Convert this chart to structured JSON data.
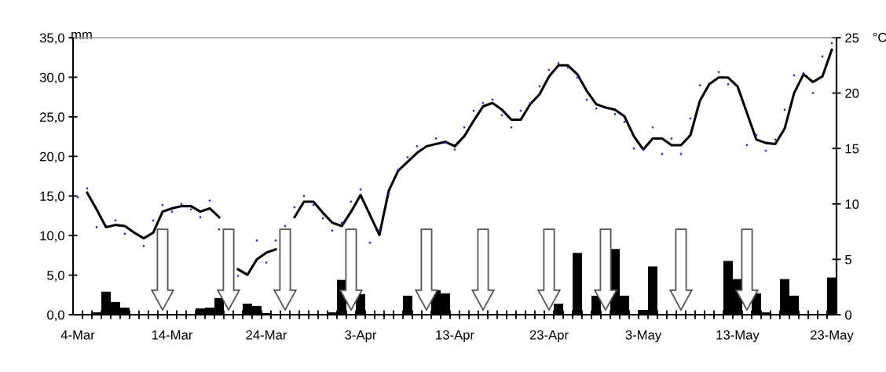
{
  "chart_data": {
    "type": "bar",
    "categories": [
      "4-Mar",
      null,
      null,
      null,
      null,
      null,
      null,
      null,
      null,
      null,
      "14-Mar",
      null,
      null,
      null,
      null,
      null,
      null,
      null,
      null,
      null,
      "24-Mar",
      null,
      null,
      null,
      null,
      null,
      null,
      null,
      null,
      null,
      "3-Apr",
      null,
      null,
      null,
      null,
      null,
      null,
      null,
      null,
      null,
      "13-Apr",
      null,
      null,
      null,
      null,
      null,
      null,
      null,
      null,
      null,
      "23-Apr",
      null,
      null,
      null,
      null,
      null,
      null,
      null,
      null,
      null,
      "3-May",
      null,
      null,
      null,
      null,
      null,
      null,
      null,
      null,
      null,
      "13-May",
      null,
      null,
      null,
      null,
      null,
      null,
      null,
      null,
      null,
      "23-May"
    ],
    "series": [
      {
        "axis": "y",
        "color": "#000000",
        "values": [
          null,
          null,
          0.3,
          2.9,
          1.6,
          0.9,
          null,
          null,
          null,
          null,
          null,
          null,
          null,
          0.8,
          0.9,
          2.1,
          null,
          null,
          1.4,
          1.1,
          0.2,
          null,
          null,
          null,
          null,
          null,
          null,
          0.3,
          4.4,
          null,
          2.6,
          null,
          null,
          null,
          null,
          2.4,
          null,
          null,
          3.1,
          2.7,
          null,
          null,
          null,
          null,
          null,
          null,
          null,
          null,
          null,
          null,
          null,
          1.4,
          null,
          7.8,
          null,
          2.4,
          null,
          8.3,
          2.4,
          null,
          0.6,
          6.1,
          null,
          null,
          null,
          null,
          null,
          null,
          null,
          6.8,
          4.5,
          null,
          2.7,
          0.3,
          null,
          4.5,
          2.4,
          null,
          null,
          null,
          4.7
        ]
      },
      {
        "type": "line",
        "axis": "y2",
        "color": "#000000",
        "marker": "none",
        "line_style": "solid",
        "values": [
          null,
          11.0,
          9.5,
          7.9,
          8.1,
          8.0,
          7.4,
          6.9,
          7.4,
          9.3,
          9.6,
          9.8,
          9.8,
          9.3,
          9.6,
          8.8,
          null,
          4.1,
          3.6,
          5.0,
          5.6,
          5.9,
          null,
          8.8,
          10.2,
          10.2,
          9.2,
          8.3,
          8.0,
          9.3,
          10.8,
          9.0,
          7.2,
          11.2,
          13.0,
          13.8,
          14.6,
          15.2,
          15.4,
          15.6,
          15.2,
          16.1,
          17.5,
          18.8,
          19.1,
          18.5,
          17.6,
          17.6,
          19.0,
          19.9,
          21.5,
          22.5,
          22.5,
          21.7,
          20.2,
          19.0,
          18.7,
          18.5,
          17.9,
          16.1,
          14.9,
          15.9,
          15.9,
          15.3,
          15.3,
          16.2,
          19.3,
          20.8,
          21.4,
          21.4,
          20.6,
          18.2,
          15.8,
          15.5,
          15.4,
          16.8,
          20.0,
          21.7,
          21.0,
          21.5,
          23.9
        ]
      },
      {
        "type": "scatter",
        "axis": "y2",
        "color": "#3333cc",
        "marker": "circle",
        "values": [
          10.6,
          11.4,
          7.9,
          null,
          8.5,
          7.3,
          null,
          6.2,
          8.5,
          9.9,
          9.3,
          10.0,
          9.5,
          8.8,
          10.3,
          7.7,
          null,
          3.5,
          null,
          6.7,
          4.7,
          6.7,
          8.0,
          9.7,
          10.7,
          9.9,
          8.7,
          7.6,
          8.3,
          10.2,
          11.3,
          6.5,
          7.6,
          10.9,
          13.1,
          14.2,
          15.2,
          null,
          15.9,
          15.5,
          14.9,
          16.9,
          18.4,
          19.1,
          19.4,
          18.0,
          16.9,
          18.4,
          19.1,
          20.6,
          22.1,
          22.7,
          22.3,
          21.4,
          19.4,
          18.6,
          null,
          18.1,
          17.4,
          15.0,
          14.9,
          16.9,
          14.5,
          15.9,
          14.5,
          17.7,
          20.7,
          null,
          21.9,
          20.8,
          null,
          15.3,
          16.2,
          14.8,
          15.8,
          18.5,
          21.6,
          21.8,
          20.0,
          23.3,
          24.5
        ]
      }
    ],
    "ylabel": "mm",
    "y2label": "°C",
    "ylim": [
      0,
      35
    ],
    "yticks": [
      {
        "value": 0,
        "label": "0,0"
      },
      {
        "value": 5,
        "label": "5,0"
      },
      {
        "value": 10,
        "label": "10,0"
      },
      {
        "value": 15,
        "label": "15,0"
      },
      {
        "value": 20,
        "label": "20,0"
      },
      {
        "value": 25,
        "label": "25,0"
      },
      {
        "value": 30,
        "label": "30,0"
      },
      {
        "value": 35,
        "label": "35,0"
      }
    ],
    "y2lim": [
      0,
      25
    ],
    "y2ticks": [
      0,
      5,
      10,
      15,
      20,
      25
    ],
    "grid": false,
    "legend": false
  }
}
